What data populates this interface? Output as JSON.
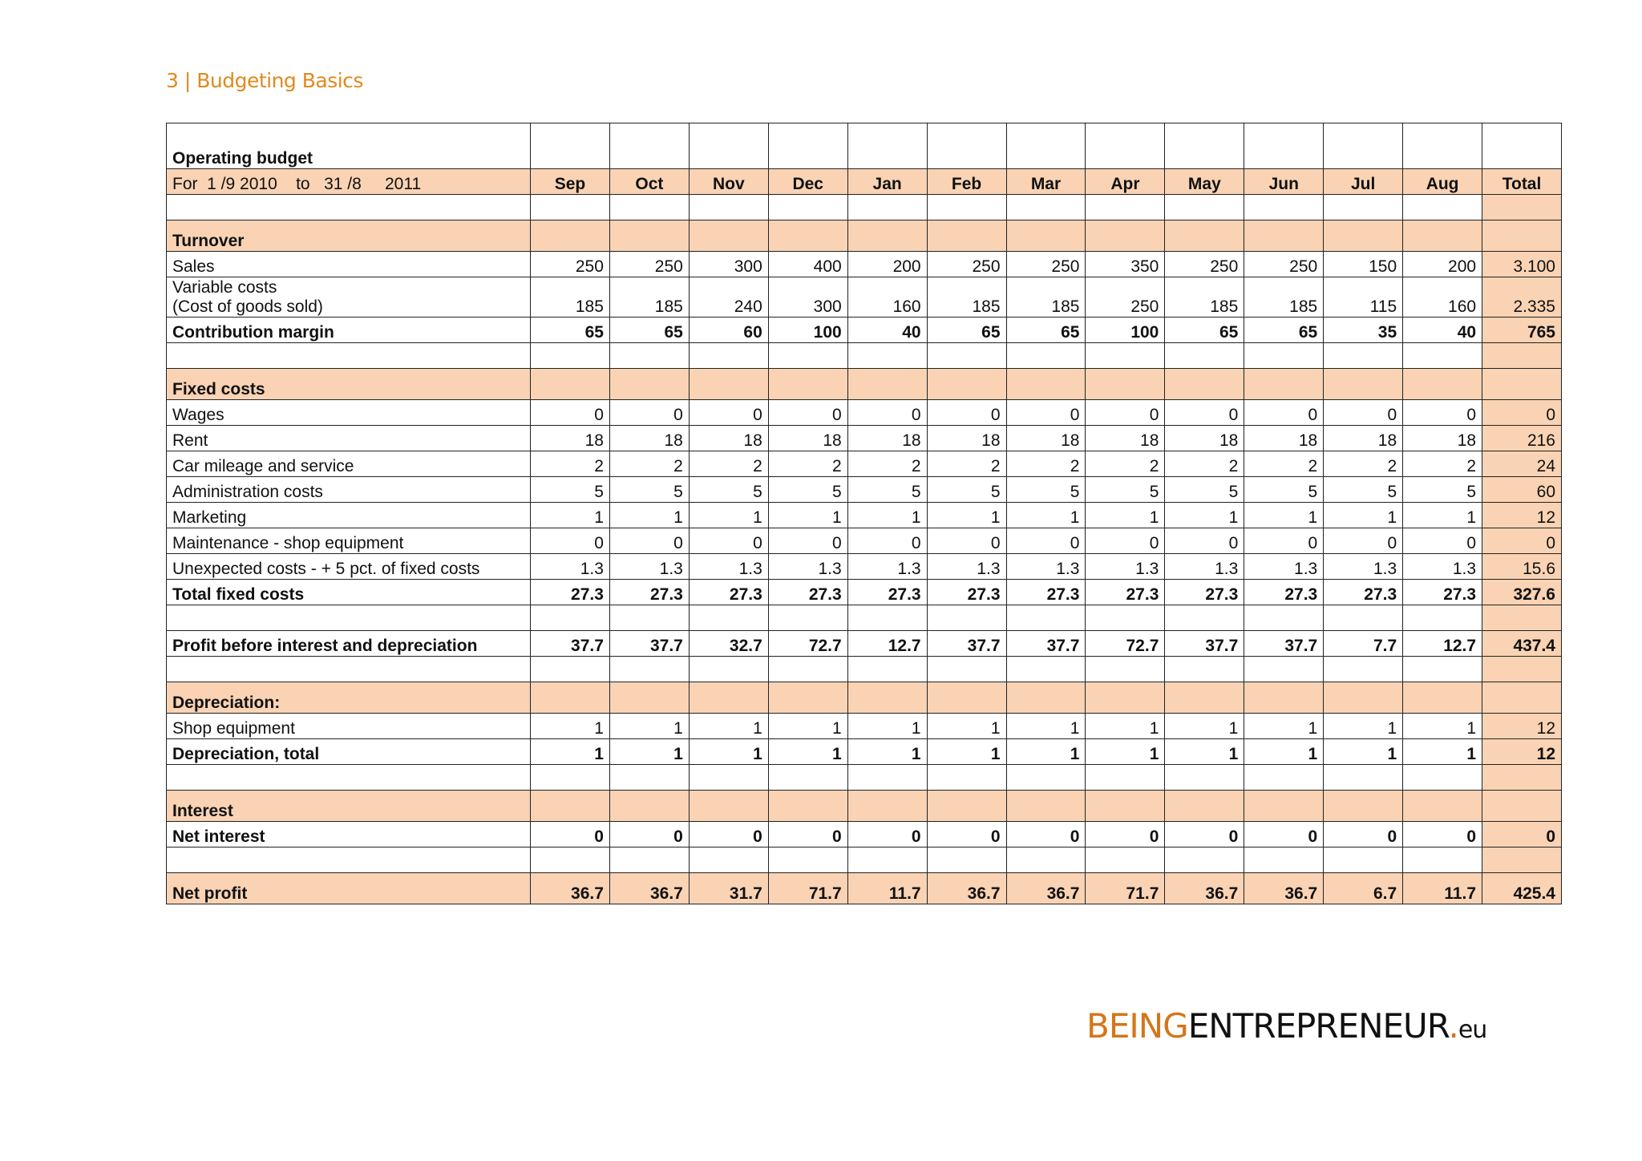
{
  "header": {
    "title": "3 | Budgeting Basics"
  },
  "table": {
    "title": "Operating budget",
    "period": "For  1 /9 2010    to   31 /8     2011",
    "months": [
      "Sep",
      "Oct",
      "Nov",
      "Dec",
      "Jan",
      "Feb",
      "Mar",
      "Apr",
      "May",
      "Jun",
      "Jul",
      "Aug",
      "Total"
    ],
    "rows": [
      {
        "type": "empty"
      },
      {
        "type": "section",
        "label": "Turnover"
      },
      {
        "type": "data",
        "label": "Sales",
        "values": [
          "250",
          "250",
          "300",
          "400",
          "200",
          "250",
          "250",
          "350",
          "250",
          "250",
          "150",
          "200",
          "3.100"
        ]
      },
      {
        "type": "double",
        "label": "Variable costs\n(Cost of goods sold)",
        "values": [
          "185",
          "185",
          "240",
          "300",
          "160",
          "185",
          "185",
          "250",
          "185",
          "185",
          "115",
          "160",
          "2.335"
        ]
      },
      {
        "type": "bold",
        "label": "Contribution margin",
        "values": [
          "65",
          "65",
          "60",
          "100",
          "40",
          "65",
          "65",
          "100",
          "65",
          "65",
          "35",
          "40",
          "765"
        ]
      },
      {
        "type": "empty"
      },
      {
        "type": "section",
        "label": "Fixed costs"
      },
      {
        "type": "data",
        "label": "Wages",
        "values": [
          "0",
          "0",
          "0",
          "0",
          "0",
          "0",
          "0",
          "0",
          "0",
          "0",
          "0",
          "0",
          "0"
        ]
      },
      {
        "type": "data",
        "label": "Rent",
        "values": [
          "18",
          "18",
          "18",
          "18",
          "18",
          "18",
          "18",
          "18",
          "18",
          "18",
          "18",
          "18",
          "216"
        ]
      },
      {
        "type": "data",
        "label": "Car mileage and service",
        "values": [
          "2",
          "2",
          "2",
          "2",
          "2",
          "2",
          "2",
          "2",
          "2",
          "2",
          "2",
          "2",
          "24"
        ]
      },
      {
        "type": "data",
        "label": "Administration costs",
        "values": [
          "5",
          "5",
          "5",
          "5",
          "5",
          "5",
          "5",
          "5",
          "5",
          "5",
          "5",
          "5",
          "60"
        ]
      },
      {
        "type": "data",
        "label": "Marketing",
        "values": [
          "1",
          "1",
          "1",
          "1",
          "1",
          "1",
          "1",
          "1",
          "1",
          "1",
          "1",
          "1",
          "12"
        ]
      },
      {
        "type": "data",
        "label": "Maintenance - shop equipment",
        "values": [
          "0",
          "0",
          "0",
          "0",
          "0",
          "0",
          "0",
          "0",
          "0",
          "0",
          "0",
          "0",
          "0"
        ]
      },
      {
        "type": "data",
        "label": "Unexpected costs - + 5 pct. of fixed costs",
        "values": [
          "1.3",
          "1.3",
          "1.3",
          "1.3",
          "1.3",
          "1.3",
          "1.3",
          "1.3",
          "1.3",
          "1.3",
          "1.3",
          "1.3",
          "15.6"
        ]
      },
      {
        "type": "bold",
        "label": "Total fixed costs",
        "values": [
          "27.3",
          "27.3",
          "27.3",
          "27.3",
          "27.3",
          "27.3",
          "27.3",
          "27.3",
          "27.3",
          "27.3",
          "27.3",
          "27.3",
          "327.6"
        ]
      },
      {
        "type": "empty"
      },
      {
        "type": "bold",
        "label": "Profit before interest and depreciation",
        "values": [
          "37.7",
          "37.7",
          "32.7",
          "72.7",
          "12.7",
          "37.7",
          "37.7",
          "72.7",
          "37.7",
          "37.7",
          "7.7",
          "12.7",
          "437.4"
        ]
      },
      {
        "type": "empty"
      },
      {
        "type": "section",
        "label": "Depreciation:"
      },
      {
        "type": "data",
        "label": "Shop equipment",
        "values": [
          "1",
          "1",
          "1",
          "1",
          "1",
          "1",
          "1",
          "1",
          "1",
          "1",
          "1",
          "1",
          "12"
        ]
      },
      {
        "type": "bold",
        "label": "Depreciation, total",
        "values": [
          "1",
          "1",
          "1",
          "1",
          "1",
          "1",
          "1",
          "1",
          "1",
          "1",
          "1",
          "1",
          "12"
        ]
      },
      {
        "type": "empty"
      },
      {
        "type": "section",
        "label": "Interest"
      },
      {
        "type": "bold",
        "label": "Net interest",
        "values": [
          "0",
          "0",
          "0",
          "0",
          "0",
          "0",
          "0",
          "0",
          "0",
          "0",
          "0",
          "0",
          "0"
        ]
      },
      {
        "type": "empty"
      },
      {
        "type": "total",
        "label": "Net profit",
        "values": [
          "36.7",
          "36.7",
          "31.7",
          "71.7",
          "11.7",
          "36.7",
          "36.7",
          "71.7",
          "36.7",
          "36.7",
          "6.7",
          "11.7",
          "425.4"
        ]
      }
    ]
  },
  "logo": {
    "part1": "BEING",
    "part2": "ENTREPRENEUR",
    "dot": ".",
    "tld": "eu"
  },
  "colors": {
    "accent": "#e08a1e",
    "highlight": "#f9d3b4"
  }
}
